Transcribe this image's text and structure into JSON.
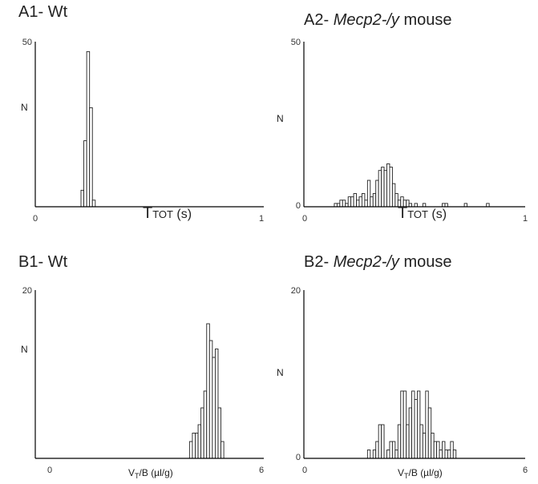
{
  "chart_data": [
    {
      "id": "A1",
      "type": "bar",
      "title_prefix": "A1- ",
      "title_italic": "",
      "title_suffix": "Wt",
      "xlabel_main": "T",
      "xlabel_sub": "TOT",
      "xlabel_unit": " (s)",
      "ylabel": "N",
      "xlim": [
        0,
        1
      ],
      "ylim": [
        0,
        50
      ],
      "x_ticks": [
        "0",
        "1"
      ],
      "y_ticks": [
        "50"
      ],
      "bin_width": 0.0125,
      "x": [
        0.2,
        0.2125,
        0.225,
        0.2375,
        0.25,
        0.2625
      ],
      "values": [
        5,
        20,
        47,
        30,
        2,
        0
      ]
    },
    {
      "id": "A2",
      "type": "bar",
      "title_prefix": "A2- ",
      "title_italic": "Mecp2-/y",
      "title_suffix": " mouse",
      "xlabel_main": "T",
      "xlabel_sub": "TOT",
      "xlabel_unit": " (s)",
      "ylabel": "N",
      "xlim": [
        0,
        1
      ],
      "ylim": [
        0,
        50
      ],
      "x_ticks": [
        "0",
        "1"
      ],
      "y_ticks": [
        "50",
        "0"
      ],
      "bin_width": 0.0125,
      "x": [
        0.1375,
        0.15,
        0.1625,
        0.175,
        0.1875,
        0.2,
        0.2125,
        0.225,
        0.2375,
        0.25,
        0.2625,
        0.275,
        0.2875,
        0.3,
        0.3125,
        0.325,
        0.3375,
        0.35,
        0.3625,
        0.375,
        0.3875,
        0.4,
        0.4125,
        0.425,
        0.4375,
        0.45,
        0.4625,
        0.475,
        0.5,
        0.5375,
        0.625,
        0.6375,
        0.725,
        0.825
      ],
      "values": [
        1,
        1,
        2,
        2,
        1,
        3,
        3,
        4,
        2,
        3,
        4,
        2,
        8,
        3,
        4,
        8,
        11,
        12,
        11,
        13,
        12,
        7,
        4,
        2,
        3,
        2,
        2,
        1,
        1,
        1,
        1,
        1,
        1,
        1
      ]
    },
    {
      "id": "B1",
      "type": "bar",
      "title_prefix": "B1- ",
      "title_italic": "",
      "title_suffix": "Wt",
      "xlabel_main": "V",
      "xlabel_sub": "T",
      "xlabel_unit": "/B (µl/g)",
      "ylabel": "N",
      "xlim": [
        0,
        6
      ],
      "ylim": [
        0,
        20
      ],
      "x_ticks": [
        "0",
        "6"
      ],
      "y_ticks": [
        "20"
      ],
      "bin_width": 0.075,
      "x": [
        4.05,
        4.125,
        4.2,
        4.275,
        4.35,
        4.425,
        4.5,
        4.575,
        4.65,
        4.725,
        4.8,
        4.875
      ],
      "values": [
        2,
        3,
        3,
        4,
        6,
        8,
        16,
        14,
        12,
        13,
        6,
        2
      ]
    },
    {
      "id": "B2",
      "type": "bar",
      "title_prefix": "B2- ",
      "title_italic": "Mecp2-/y",
      "title_suffix": " mouse",
      "xlabel_main": "V",
      "xlabel_sub": "T",
      "xlabel_unit": "/B (µl/g)",
      "ylabel": "N",
      "xlim": [
        0,
        6
      ],
      "ylim": [
        0,
        20
      ],
      "x_ticks": [
        "0",
        "6"
      ],
      "y_ticks": [
        "20",
        "0"
      ],
      "bin_width": 0.075,
      "x": [
        1.725,
        1.875,
        1.95,
        2.025,
        2.1,
        2.25,
        2.325,
        2.4,
        2.475,
        2.55,
        2.625,
        2.7,
        2.775,
        2.85,
        2.925,
        3.0,
        3.075,
        3.15,
        3.225,
        3.3,
        3.375,
        3.45,
        3.525,
        3.6,
        3.675,
        3.75,
        3.825,
        3.9,
        3.975,
        4.05
      ],
      "values": [
        1,
        1,
        2,
        4,
        4,
        1,
        2,
        2,
        1,
        4,
        8,
        8,
        4,
        6,
        8,
        7,
        8,
        4,
        3,
        8,
        6,
        3,
        2,
        2,
        1,
        2,
        1,
        1,
        2,
        1
      ]
    }
  ]
}
